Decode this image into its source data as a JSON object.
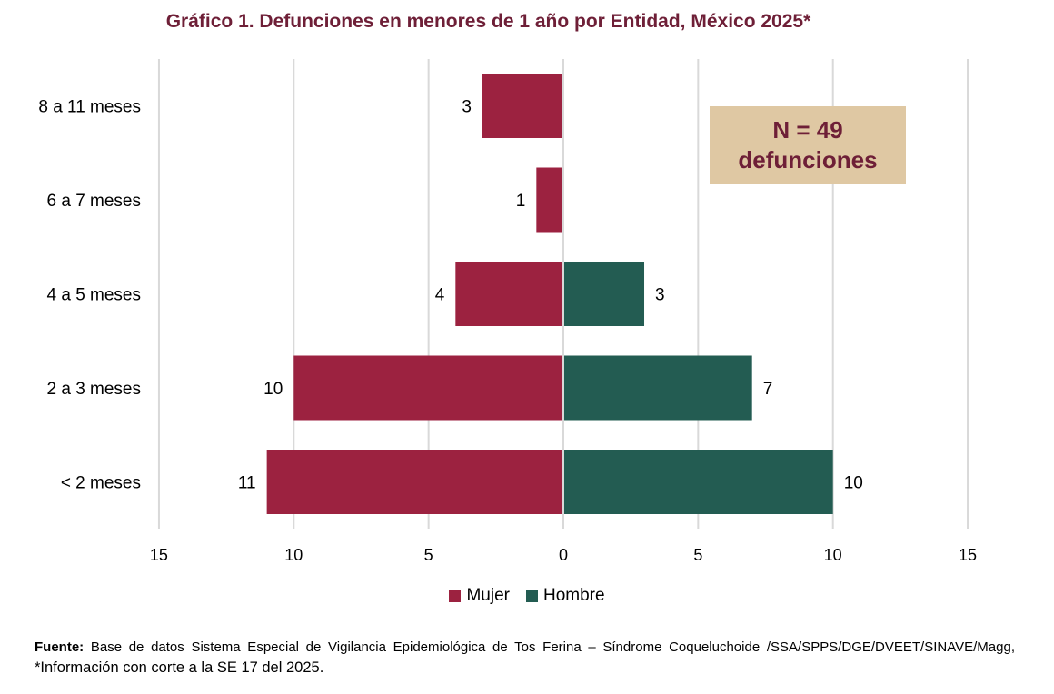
{
  "chart_data": {
    "type": "bar",
    "orientation": "horizontal-diverging",
    "title": "Gráfico 1. Defunciones en menores de 1 año por Entidad, México 2025*",
    "categories": [
      "8 a 11 meses",
      "6 a 7 meses",
      "4 a 5 meses",
      "2 a 3 meses",
      "< 2 meses"
    ],
    "series": [
      {
        "name": "Mujer",
        "color": "#9c2240",
        "values": [
          3,
          1,
          4,
          10,
          11
        ]
      },
      {
        "name": "Hombre",
        "color": "#235c52",
        "values": [
          0,
          0,
          3,
          7,
          10
        ]
      }
    ],
    "xlim": [
      -15,
      15
    ],
    "xticks": [
      15,
      10,
      5,
      0,
      5,
      10,
      15
    ],
    "grid": true,
    "legend": "bottom",
    "annotation": {
      "line1": "N = 49",
      "line2": "defunciones"
    }
  },
  "legend": {
    "mujer": "Mujer",
    "hombre": "Hombre",
    "mujer_color": "#9c2240",
    "hombre_color": "#235c52"
  },
  "source": {
    "label": "Fuente:",
    "text": " Base de datos Sistema Especial de Vigilancia Epidemiológica de Tos Ferina – Síndrome Coqueluchoide /SSA/SPPS/DGE/DVEET/SINAVE/Magg, ",
    "note": "*Información con corte a la SE 17 del 2025."
  }
}
